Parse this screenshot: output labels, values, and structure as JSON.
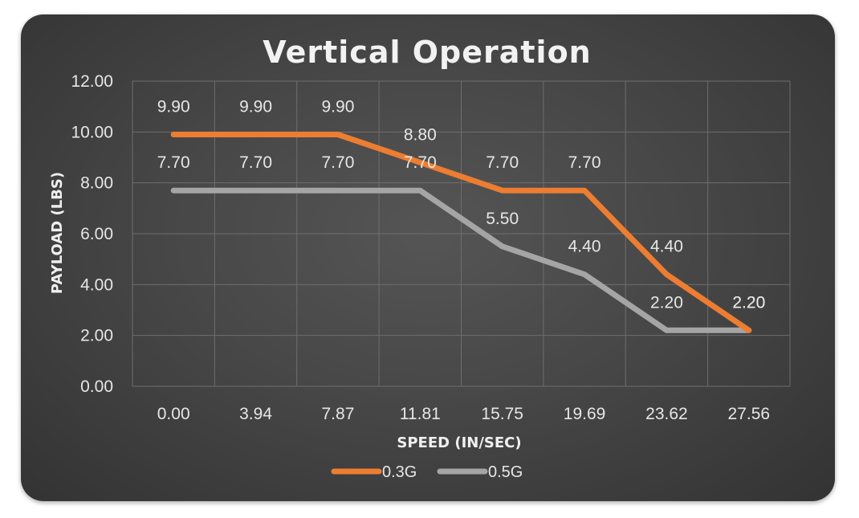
{
  "chart_data": {
    "type": "line",
    "title": "Vertical Operation",
    "xlabel": "SPEED (IN/SEC)",
    "ylabel": "PAYLOAD (LBS)",
    "categories": [
      "0.00",
      "3.94",
      "7.87",
      "11.81",
      "15.75",
      "19.69",
      "23.62",
      "27.56"
    ],
    "y_ticks": [
      "0.00",
      "2.00",
      "4.00",
      "6.00",
      "8.00",
      "10.00",
      "12.00"
    ],
    "ylim": [
      0,
      12
    ],
    "grid": true,
    "legend_position": "bottom",
    "series": [
      {
        "name": "0.3G",
        "color": "#ED7D31",
        "values": [
          9.9,
          9.9,
          9.9,
          8.8,
          7.7,
          7.7,
          4.4,
          2.2
        ],
        "labels": [
          "9.90",
          "9.90",
          "9.90",
          "8.80",
          "7.70",
          "7.70",
          "4.40",
          "2.20"
        ]
      },
      {
        "name": "0.5G",
        "color": "#A5A5A5",
        "values": [
          7.7,
          7.7,
          7.7,
          7.7,
          5.5,
          4.4,
          2.2,
          2.2
        ],
        "labels": [
          "7.70",
          "7.70",
          "7.70",
          "7.70",
          "5.50",
          "4.40",
          "2.20",
          "2.20"
        ]
      }
    ]
  }
}
